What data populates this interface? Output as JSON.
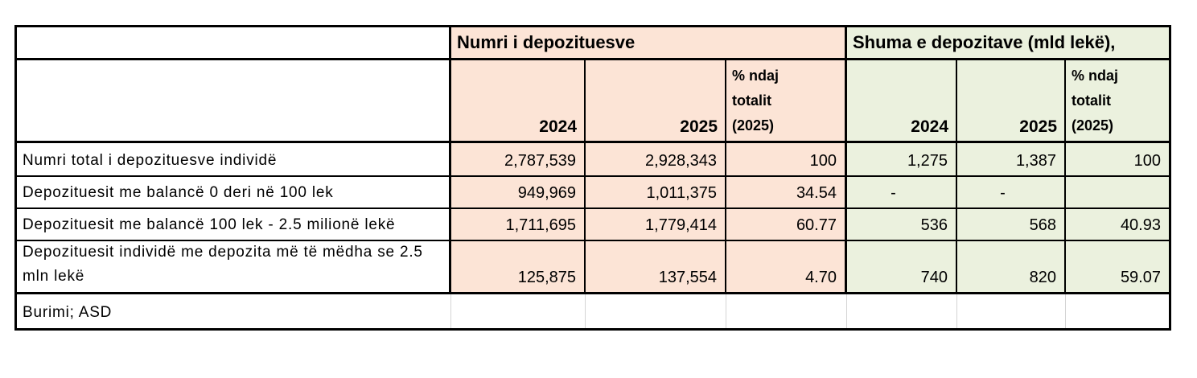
{
  "table": {
    "titles": {
      "numri": "Numri i depozituesve",
      "shuma": "Shuma e depozitave (mld lekë),"
    },
    "col_headers": {
      "y2024": "2024",
      "y2025": "2025",
      "pct": "% ndaj\ntotalit\n(2025)"
    },
    "rows": [
      {
        "label": "Numri total i depozituesve individë",
        "n2024": "2,787,539",
        "n2025": "2,928,343",
        "npct": "100",
        "s2024": "1,275",
        "s2025": "1,387",
        "spct": "100"
      },
      {
        "label": "Depozituesit me balancë 0 deri në 100 lek",
        "n2024": "949,969",
        "n2025": "1,011,375",
        "npct": "34.54",
        "s2024": "-",
        "s2025": "-",
        "spct": ""
      },
      {
        "label": "Depozituesit me balancë 100 lek - 2.5 milionë lekë",
        "n2024": "1,711,695",
        "n2025": "1,779,414",
        "npct": "60.77",
        "s2024": "536",
        "s2025": "568",
        "spct": "40.93"
      },
      {
        "label": "Depozituesit individë me depozita më të mëdha se 2.5 mln lekë",
        "n2024": "125,875",
        "n2025": "137,554",
        "npct": "4.70",
        "s2024": "740",
        "s2025": "820",
        "spct": "59.07"
      }
    ],
    "source": "Burimi; ASD",
    "colors": {
      "numri_section_bg": "#fce4d6",
      "shuma_section_bg": "#ebf1de",
      "border": "#000000",
      "faint_gridline": "#d4d4d4"
    }
  }
}
